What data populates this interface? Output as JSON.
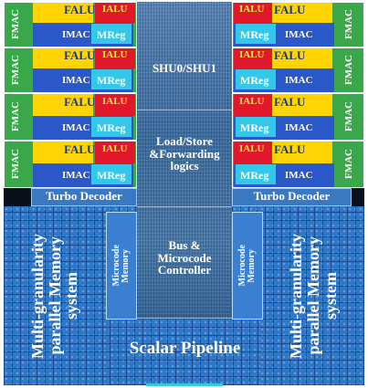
{
  "diagram": {
    "left_blocks": [
      {
        "fmac": "FMAC",
        "falu": "FALU",
        "ialu": "IALU",
        "imac": "IMAC",
        "mreg": "MReg"
      },
      {
        "fmac": "FMAC",
        "falu": "FALU",
        "ialu": "IALU",
        "imac": "IMAC",
        "mreg": "MReg"
      },
      {
        "fmac": "FMAC",
        "falu": "FALU",
        "ialu": "IALU",
        "imac": "IMAC",
        "mreg": "MReg"
      },
      {
        "fmac": "FMAC",
        "falu": "FALU",
        "ialu": "IALU",
        "imac": "IMAC",
        "mreg": "MReg"
      }
    ],
    "right_blocks": [
      {
        "fmac": "FMAC",
        "falu": "FALU",
        "ialu": "IALU",
        "imac": "IMAC",
        "mreg": "MReg"
      },
      {
        "fmac": "FMAC",
        "falu": "FALU",
        "ialu": "IALU",
        "imac": "IMAC",
        "mreg": "MReg"
      },
      {
        "fmac": "FMAC",
        "falu": "FALU",
        "ialu": "IALU",
        "imac": "IMAC",
        "mreg": "MReg"
      },
      {
        "fmac": "FMAC",
        "falu": "FALU",
        "ialu": "IALU",
        "imac": "IMAC",
        "mreg": "MReg"
      }
    ],
    "center": {
      "shu": "SHU0/SHU1",
      "loadstore": [
        "Load/Store",
        "&Forwarding",
        "logics"
      ],
      "bus": [
        "Bus &",
        "Microcode",
        "Controller"
      ]
    },
    "turbo_left": "Turbo Decoder",
    "turbo_right": "Turbo Decoder",
    "microcode_left": [
      "Microcode",
      "Memory"
    ],
    "microcode_right": [
      "Microcode",
      "Memory"
    ],
    "memory_left": [
      "Multi-granularity",
      "parallel Memory",
      "system"
    ],
    "memory_right": [
      "Multi-granularity",
      "parallel Memory",
      "system"
    ],
    "scalar": "Scalar Pipeline"
  }
}
